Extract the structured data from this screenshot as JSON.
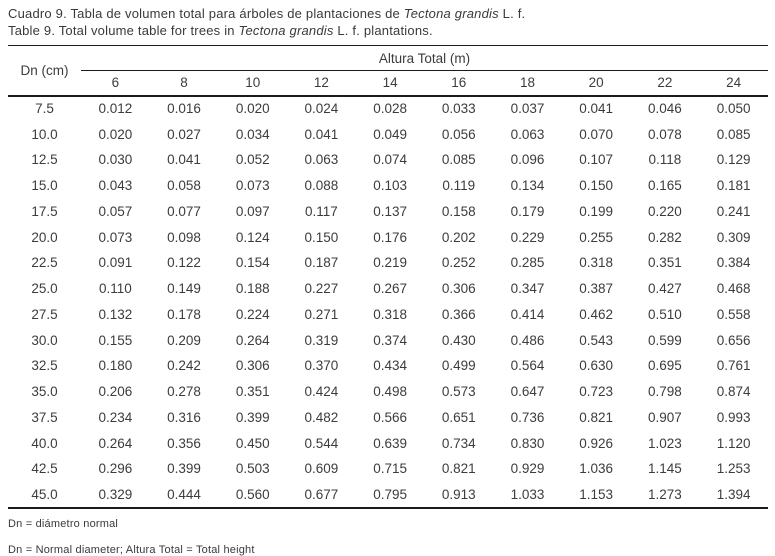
{
  "page": {
    "background": "#ffffff",
    "text_color": "#3d3d3d",
    "rule_color": "#1a1a1a"
  },
  "caption": {
    "line1_parts": [
      {
        "text": "Cuadro 9. Tabla de volumen total para árboles de plantaciones de ",
        "italic": false
      },
      {
        "text": "Tectona grandis",
        "italic": true
      },
      {
        "text": " L. f.",
        "italic": false
      }
    ],
    "line2_parts": [
      {
        "text": "Table 9. Total volume table for trees in ",
        "italic": false
      },
      {
        "text": "Tectona grandis",
        "italic": true
      },
      {
        "text": " L. f. plantations.",
        "italic": false
      }
    ]
  },
  "table": {
    "corner_header": "Dn (cm)",
    "span_header": "Altura Total (m)",
    "height_columns": [
      "6",
      "8",
      "10",
      "12",
      "14",
      "16",
      "18",
      "20",
      "22",
      "24"
    ],
    "rows": [
      {
        "dn": "7.5",
        "values": [
          "0.012",
          "0.016",
          "0.020",
          "0.024",
          "0.028",
          "0.033",
          "0.037",
          "0.041",
          "0.046",
          "0.050"
        ]
      },
      {
        "dn": "10.0",
        "values": [
          "0.020",
          "0.027",
          "0.034",
          "0.041",
          "0.049",
          "0.056",
          "0.063",
          "0.070",
          "0.078",
          "0.085"
        ]
      },
      {
        "dn": "12.5",
        "values": [
          "0.030",
          "0.041",
          "0.052",
          "0.063",
          "0.074",
          "0.085",
          "0.096",
          "0.107",
          "0.118",
          "0.129"
        ]
      },
      {
        "dn": "15.0",
        "values": [
          "0.043",
          "0.058",
          "0.073",
          "0.088",
          "0.103",
          "0.119",
          "0.134",
          "0.150",
          "0.165",
          "0.181"
        ]
      },
      {
        "dn": "17.5",
        "values": [
          "0.057",
          "0.077",
          "0.097",
          "0.117",
          "0.137",
          "0.158",
          "0.179",
          "0.199",
          "0.220",
          "0.241"
        ]
      },
      {
        "dn": "20.0",
        "values": [
          "0.073",
          "0.098",
          "0.124",
          "0.150",
          "0.176",
          "0.202",
          "0.229",
          "0.255",
          "0.282",
          "0.309"
        ]
      },
      {
        "dn": "22.5",
        "values": [
          "0.091",
          "0.122",
          "0.154",
          "0.187",
          "0.219",
          "0.252",
          "0.285",
          "0.318",
          "0.351",
          "0.384"
        ]
      },
      {
        "dn": "25.0",
        "values": [
          "0.110",
          "0.149",
          "0.188",
          "0.227",
          "0.267",
          "0.306",
          "0.347",
          "0.387",
          "0.427",
          "0.468"
        ]
      },
      {
        "dn": "27.5",
        "values": [
          "0.132",
          "0.178",
          "0.224",
          "0.271",
          "0.318",
          "0.366",
          "0.414",
          "0.462",
          "0.510",
          "0.558"
        ]
      },
      {
        "dn": "30.0",
        "values": [
          "0.155",
          "0.209",
          "0.264",
          "0.319",
          "0.374",
          "0.430",
          "0.486",
          "0.543",
          "0.599",
          "0.656"
        ]
      },
      {
        "dn": "32.5",
        "values": [
          "0.180",
          "0.242",
          "0.306",
          "0.370",
          "0.434",
          "0.499",
          "0.564",
          "0.630",
          "0.695",
          "0.761"
        ]
      },
      {
        "dn": "35.0",
        "values": [
          "0.206",
          "0.278",
          "0.351",
          "0.424",
          "0.498",
          "0.573",
          "0.647",
          "0.723",
          "0.798",
          "0.874"
        ]
      },
      {
        "dn": "37.5",
        "values": [
          "0.234",
          "0.316",
          "0.399",
          "0.482",
          "0.566",
          "0.651",
          "0.736",
          "0.821",
          "0.907",
          "0.993"
        ]
      },
      {
        "dn": "40.0",
        "values": [
          "0.264",
          "0.356",
          "0.450",
          "0.544",
          "0.639",
          "0.734",
          "0.830",
          "0.926",
          "1.023",
          "1.120"
        ]
      },
      {
        "dn": "42.5",
        "values": [
          "0.296",
          "0.399",
          "0.503",
          "0.609",
          "0.715",
          "0.821",
          "0.929",
          "1.036",
          "1.145",
          "1.253"
        ]
      },
      {
        "dn": "45.0",
        "values": [
          "0.329",
          "0.444",
          "0.560",
          "0.677",
          "0.795",
          "0.913",
          "1.033",
          "1.153",
          "1.273",
          "1.394"
        ]
      }
    ]
  },
  "footnotes": [
    "Dn = diámetro normal",
    "Dn = Normal diameter; Altura Total = Total height"
  ]
}
